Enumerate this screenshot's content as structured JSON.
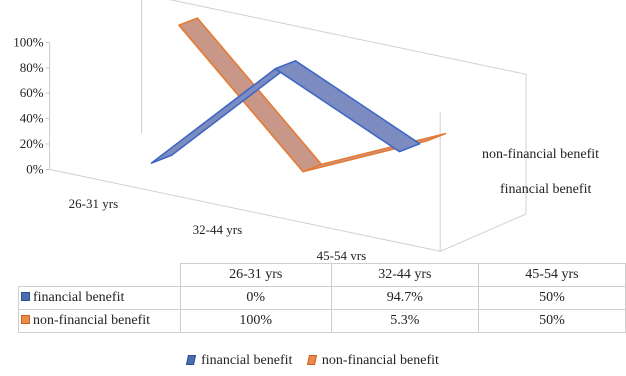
{
  "chart_data": {
    "type": "line",
    "style": "3d-ribbon",
    "categories": [
      "26-31 yrs",
      "32-44 yrs",
      "45-54 yrs"
    ],
    "series": [
      {
        "name": "financial benefit",
        "values": [
          0,
          94.7,
          50
        ],
        "labels": [
          "0%",
          "94.7%",
          "50%"
        ],
        "color": "#4a6fb0"
      },
      {
        "name": "non-financial benefit",
        "values": [
          100,
          5.3,
          50
        ],
        "labels": [
          "100%",
          "5.3%",
          "50%"
        ],
        "color": "#ec8a4a"
      }
    ],
    "y_ticks": [
      "0%",
      "20%",
      "40%",
      "60%",
      "80%",
      "100%"
    ],
    "ylim": [
      0,
      100
    ],
    "grid": false,
    "data_table": true,
    "legend_position": "bottom"
  }
}
